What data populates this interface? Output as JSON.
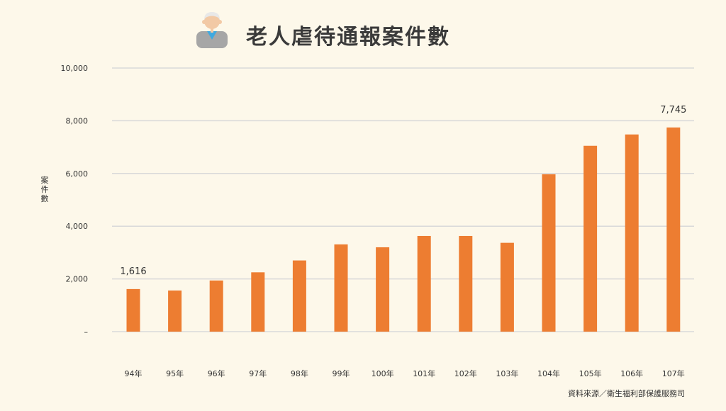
{
  "title_icon": "elderly-person-icon",
  "source": "資料來源／衛生福利部保護服務司",
  "colors": {
    "background": "#FDF8EA",
    "bar": "#ED7D31",
    "grid": "#D9D9D9",
    "text": "#333333"
  },
  "chart_data": {
    "type": "bar",
    "title": "老人虐待通報案件數",
    "ylabel": "案件數",
    "xlabel": "",
    "categories": [
      "94年",
      "95年",
      "96年",
      "97年",
      "98年",
      "99年",
      "100年",
      "101年",
      "102年",
      "103年",
      "104年",
      "105年",
      "106年",
      "107年"
    ],
    "values": [
      1616,
      1560,
      1940,
      2250,
      2700,
      3310,
      3200,
      3630,
      3630,
      3370,
      5970,
      7050,
      7480,
      7745
    ],
    "ylim": [
      0,
      10000
    ],
    "yticks": [
      {
        "value": 0,
        "label": "–"
      },
      {
        "value": 2000,
        "label": "2,000"
      },
      {
        "value": 4000,
        "label": "4,000"
      },
      {
        "value": 6000,
        "label": "6,000"
      },
      {
        "value": 8000,
        "label": "8,000"
      },
      {
        "value": 10000,
        "label": "10,000"
      }
    ],
    "data_labels": [
      {
        "index": 0,
        "text": "1,616"
      },
      {
        "index": 13,
        "text": "7,745"
      }
    ],
    "grid": true,
    "legend": "none"
  }
}
